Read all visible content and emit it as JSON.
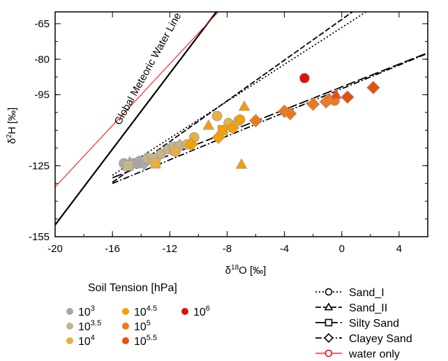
{
  "chart_data": {
    "type": "scatter",
    "xlabel": {
      "base": "δ",
      "sup": "18",
      "rest": "O [‰]"
    },
    "ylabel": {
      "base": "δ",
      "sup": "2",
      "rest": "H [‰]"
    },
    "xlim": [
      -20,
      6
    ],
    "ylim": [
      -155,
      -60
    ],
    "xticks": [
      "-20",
      "-16",
      "-12",
      "-8",
      "-4",
      "0",
      "4"
    ],
    "xtick_values": [
      -20,
      -16,
      -12,
      -8,
      -4,
      0,
      4
    ],
    "yticks": [
      "-65",
      "-80",
      "-95",
      "-125",
      "-155"
    ],
    "ytick_values": [
      -65,
      -80,
      -95,
      -125,
      -155
    ],
    "annotation": "Global Meteoric Water Line",
    "lines": [
      {
        "name": "Global Meteoric Water Line",
        "slope": 8,
        "intercept": 10,
        "x_range": [
          -20,
          -7
        ],
        "color": "#000000",
        "dash": "solid"
      },
      {
        "name": "water only",
        "slope": 6.5,
        "intercept": -4,
        "x_range": [
          -20,
          6
        ],
        "color": "#ff0000",
        "dash": "solid"
      },
      {
        "name": "Sand_I",
        "slope": 3.9,
        "intercept": -66.6,
        "x_range": [
          -16,
          6
        ],
        "color": "#000000",
        "dash": "dotted"
      },
      {
        "name": "Sand_II",
        "slope": 4.3,
        "intercept": -63.2,
        "x_range": [
          -16,
          6
        ],
        "color": "#000000",
        "dash": "dashed"
      },
      {
        "name": "Silty Sand",
        "slope": 2.4,
        "intercept": -91.7,
        "x_range": [
          -16,
          6
        ],
        "color": "#000000",
        "dash": "longdash"
      },
      {
        "name": "Clayey Sand",
        "slope": 2.5,
        "intercept": -92.5,
        "x_range": [
          -16,
          6
        ],
        "color": "#000000",
        "dash": "dashdot"
      }
    ],
    "points": [
      {
        "x": -15.2,
        "y": -124,
        "shape": "circle",
        "tension": "10^3"
      },
      {
        "x": -14.8,
        "y": -123.5,
        "shape": "triangle",
        "tension": "10^3"
      },
      {
        "x": -14.4,
        "y": -124,
        "shape": "square",
        "tension": "10^3"
      },
      {
        "x": -14.1,
        "y": -123,
        "shape": "circle",
        "tension": "10^3"
      },
      {
        "x": -13.8,
        "y": -124,
        "shape": "diamond",
        "tension": "10^3"
      },
      {
        "x": -14.9,
        "y": -125,
        "shape": "square",
        "tension": "10^3.5"
      },
      {
        "x": -13.6,
        "y": -122,
        "shape": "diamond",
        "tension": "10^3.5"
      },
      {
        "x": -13.2,
        "y": -122,
        "shape": "square",
        "tension": "10^3.5"
      },
      {
        "x": -12.6,
        "y": -120,
        "shape": "circle",
        "tension": "10^3.5"
      },
      {
        "x": -12.1,
        "y": -118,
        "shape": "circle",
        "tension": "10^3.5"
      },
      {
        "x": -11.7,
        "y": -117,
        "shape": "square",
        "tension": "10^3.5"
      },
      {
        "x": -11.3,
        "y": -116.5,
        "shape": "diamond",
        "tension": "10^3.5"
      },
      {
        "x": -13.0,
        "y": -124,
        "shape": "square",
        "tension": "10^4"
      },
      {
        "x": -11.6,
        "y": -119,
        "shape": "circle",
        "tension": "10^4"
      },
      {
        "x": -10.8,
        "y": -116,
        "shape": "circle",
        "tension": "10^4"
      },
      {
        "x": -10.3,
        "y": -113,
        "shape": "circle",
        "tension": "10^4"
      },
      {
        "x": -8.7,
        "y": -104,
        "shape": "circle",
        "tension": "10^4"
      },
      {
        "x": -7.9,
        "y": -107,
        "shape": "circle",
        "tension": "10^4"
      },
      {
        "x": -7.2,
        "y": -106,
        "shape": "circle",
        "tension": "10^4"
      },
      {
        "x": -10.5,
        "y": -116,
        "shape": "diamond",
        "tension": "10^4.5"
      },
      {
        "x": -9.3,
        "y": -108,
        "shape": "triangle",
        "tension": "10^4.5"
      },
      {
        "x": -8.6,
        "y": -113,
        "shape": "diamond",
        "tension": "10^4.5"
      },
      {
        "x": -8.3,
        "y": -110,
        "shape": "square",
        "tension": "10^4.5"
      },
      {
        "x": -7.6,
        "y": -109,
        "shape": "diamond",
        "tension": "10^4.5"
      },
      {
        "x": -7.1,
        "y": -105.5,
        "shape": "circle",
        "tension": "10^4.5"
      },
      {
        "x": -6.8,
        "y": -100,
        "shape": "triangle",
        "tension": "10^4.5"
      },
      {
        "x": -7.0,
        "y": -124.5,
        "shape": "triangle",
        "tension": "10^4.5"
      },
      {
        "x": -6.0,
        "y": -106,
        "shape": "diamond",
        "tension": "10^5"
      },
      {
        "x": -4.0,
        "y": -102,
        "shape": "diamond",
        "tension": "10^5"
      },
      {
        "x": -3.6,
        "y": -103,
        "shape": "diamond",
        "tension": "10^5"
      },
      {
        "x": -2.0,
        "y": -99,
        "shape": "diamond",
        "tension": "10^5"
      },
      {
        "x": -1.1,
        "y": -98,
        "shape": "diamond",
        "tension": "10^5"
      },
      {
        "x": -0.9,
        "y": -97,
        "shape": "diamond",
        "tension": "10^5"
      },
      {
        "x": -0.5,
        "y": -97.5,
        "shape": "circle",
        "tension": "10^5"
      },
      {
        "x": 0.4,
        "y": -96,
        "shape": "diamond",
        "tension": "10^5.5"
      },
      {
        "x": 2.2,
        "y": -92,
        "shape": "diamond",
        "tension": "10^5.5"
      },
      {
        "x": -0.4,
        "y": -95,
        "shape": "triangle",
        "tension": "10^5.5"
      },
      {
        "x": -2.6,
        "y": -88,
        "shape": "circle",
        "tension": "10^6"
      }
    ],
    "legend_title": "Soil Tension [hPa]",
    "tension_legend": [
      {
        "key": "10^3",
        "base": "10",
        "exp": "3",
        "color": "#a9a9a9"
      },
      {
        "key": "10^3.5",
        "base": "10",
        "exp": "3.5",
        "color": "#c8b48c"
      },
      {
        "key": "10^4",
        "base": "10",
        "exp": "4",
        "color": "#e8b040"
      },
      {
        "key": "10^4.5",
        "base": "10",
        "exp": "4.5",
        "color": "#f5a000"
      },
      {
        "key": "10^5",
        "base": "10",
        "exp": "5",
        "color": "#f07818"
      },
      {
        "key": "10^5.5",
        "base": "10",
        "exp": "5.5",
        "color": "#e84e10"
      },
      {
        "key": "10^6",
        "base": "10",
        "exp": "6",
        "color": "#e01010"
      }
    ],
    "soil_legend": [
      {
        "label": "Sand_I",
        "marker": "circle",
        "dash": "dotted",
        "color": "#000000"
      },
      {
        "label": "Sand_II",
        "marker": "triangle",
        "dash": "dashed",
        "color": "#000000"
      },
      {
        "label": "Silty Sand",
        "marker": "square",
        "dash": "longdash",
        "color": "#000000"
      },
      {
        "label": "Clayey Sand",
        "marker": "diamond",
        "dash": "dashdot",
        "color": "#000000"
      },
      {
        "label": "water only",
        "marker": "circle",
        "dash": "solid",
        "color": "#ff0000"
      }
    ]
  }
}
